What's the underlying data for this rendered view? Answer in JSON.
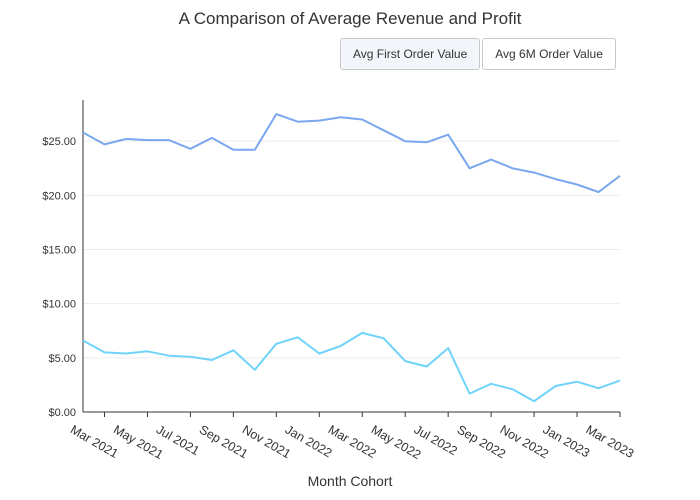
{
  "title": "A Comparison of Average Revenue and Profit",
  "buttons": [
    {
      "label": "Avg First Order Value",
      "active": true
    },
    {
      "label": "Avg 6M Order Value",
      "active": false
    }
  ],
  "chart_data": {
    "type": "line",
    "title": "A Comparison of Average Revenue and Profit",
    "xlabel": "Month Cohort",
    "ylabel": "",
    "ylim": [
      0,
      28.8
    ],
    "yticks": [
      {
        "value": 0,
        "label": "$0.00"
      },
      {
        "value": 5,
        "label": "$5.00"
      },
      {
        "value": 10,
        "label": "$10.00"
      },
      {
        "value": 15,
        "label": "$15.00"
      },
      {
        "value": 20,
        "label": "$20.00"
      },
      {
        "value": 25,
        "label": "$25.00"
      }
    ],
    "x": [
      "2021-02",
      "2021-03",
      "2021-04",
      "2021-05",
      "2021-06",
      "2021-07",
      "2021-08",
      "2021-09",
      "2021-10",
      "2021-11",
      "2021-12",
      "2022-01",
      "2022-02",
      "2022-03",
      "2022-04",
      "2022-05",
      "2022-06",
      "2022-07",
      "2022-08",
      "2022-09",
      "2022-10",
      "2022-11",
      "2022-12",
      "2023-01",
      "2023-02",
      "2023-03"
    ],
    "xticks": [
      {
        "index": 1,
        "label": "Mar 2021"
      },
      {
        "index": 3,
        "label": "May 2021"
      },
      {
        "index": 5,
        "label": "Jul 2021"
      },
      {
        "index": 7,
        "label": "Sep 2021"
      },
      {
        "index": 9,
        "label": "Nov 2021"
      },
      {
        "index": 11,
        "label": "Jan 2022"
      },
      {
        "index": 13,
        "label": "Mar 2022"
      },
      {
        "index": 15,
        "label": "May 2022"
      },
      {
        "index": 17,
        "label": "Jul 2022"
      },
      {
        "index": 19,
        "label": "Sep 2022"
      },
      {
        "index": 21,
        "label": "Nov 2022"
      },
      {
        "index": 23,
        "label": "Jan 2023"
      },
      {
        "index": 25,
        "label": "Mar 2023"
      }
    ],
    "series": [
      {
        "color": "#7aa7ef",
        "values": [
          25.8,
          24.7,
          25.2,
          25.1,
          25.1,
          24.3,
          25.3,
          24.2,
          24.2,
          27.5,
          26.8,
          26.9,
          27.2,
          27.0,
          26.0,
          25.0,
          24.9,
          25.6,
          22.5,
          23.3,
          22.5,
          22.1,
          21.5,
          21.0,
          20.3,
          21.8
        ]
      },
      {
        "color": "#6fd3fa",
        "values": [
          6.6,
          5.5,
          5.4,
          5.6,
          5.2,
          5.1,
          4.8,
          5.7,
          3.9,
          6.3,
          6.9,
          5.4,
          6.1,
          7.3,
          6.8,
          4.7,
          4.2,
          5.9,
          1.7,
          2.6,
          2.1,
          1.0,
          2.4,
          2.8,
          2.2,
          2.9
        ]
      }
    ],
    "grid": true
  }
}
